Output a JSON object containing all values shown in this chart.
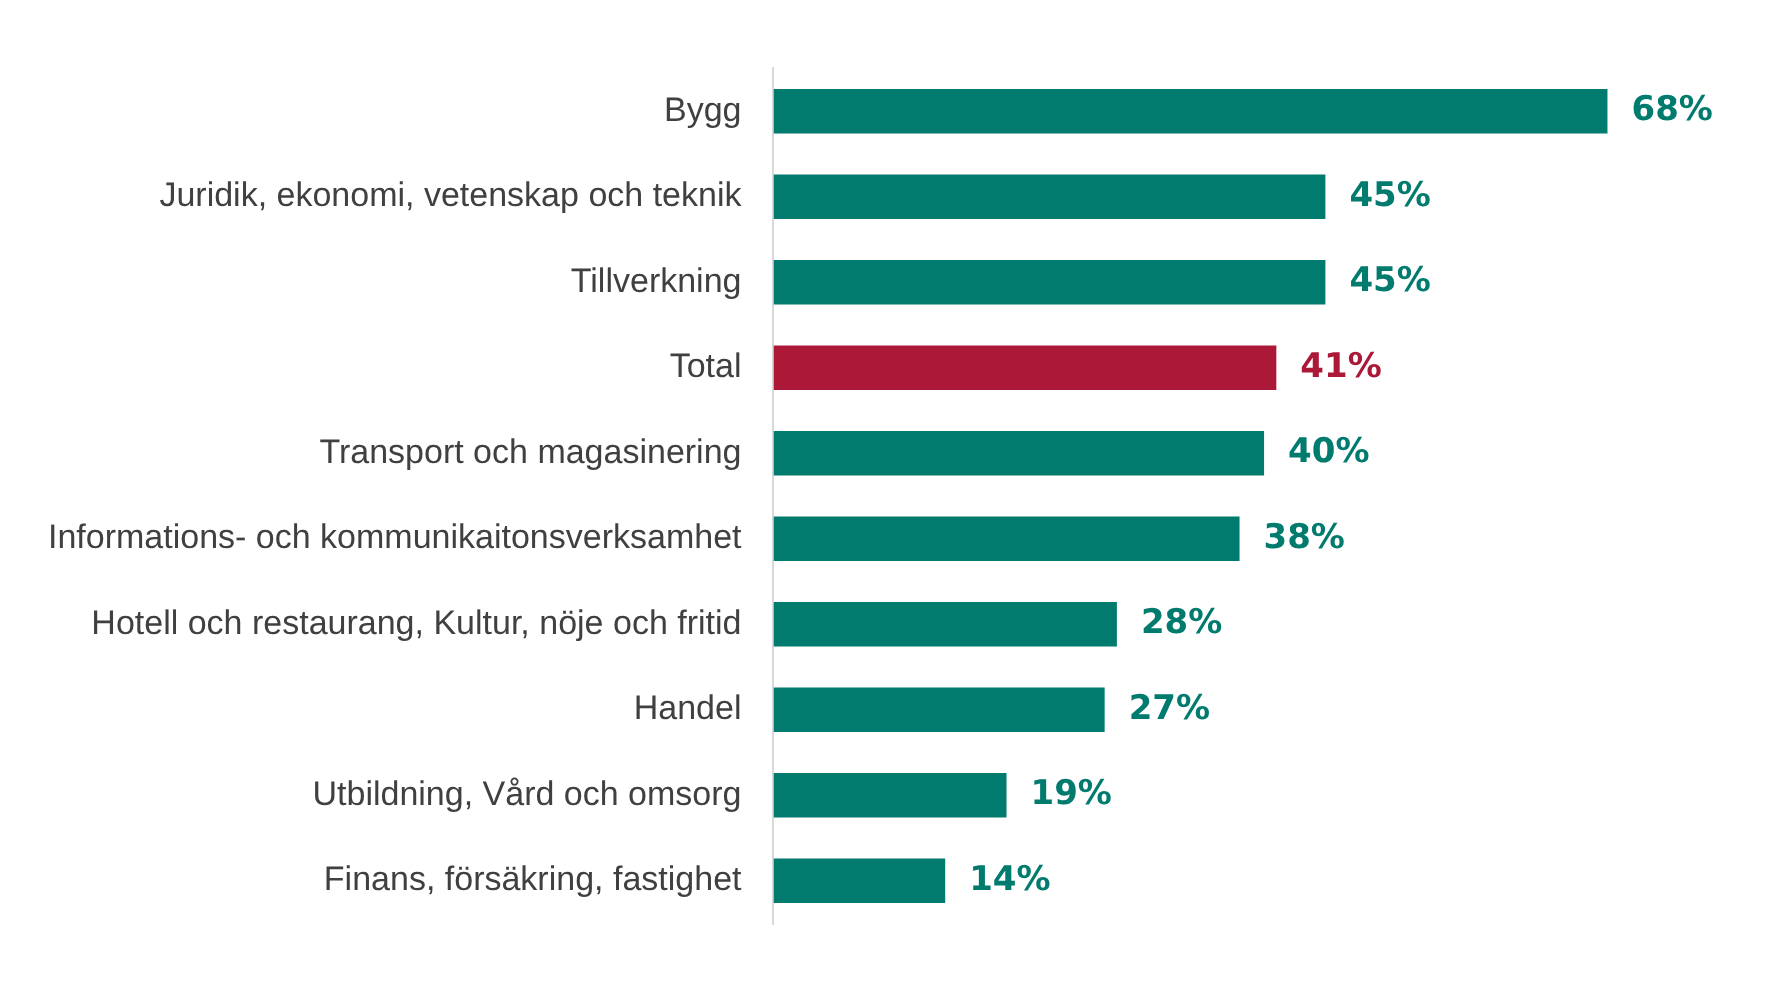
{
  "chart_data": {
    "type": "bar",
    "orientation": "horizontal",
    "categories": [
      "Bygg",
      "Juridik, ekonomi, vetenskap och teknik",
      "Tillverkning",
      "Total",
      "Transport och magasinering",
      "Informations- och kommunikaitonsverksamhet",
      "Hotell och restaurang, Kultur, nöje och fritid",
      "Handel",
      "Utbildning, Vård och omsorg",
      "Finans, försäkring, fastighet"
    ],
    "values": [
      68,
      45,
      45,
      41,
      40,
      38,
      28,
      27,
      19,
      14
    ],
    "colors": [
      "#007b6e",
      "#007b6e",
      "#007b6e",
      "#ab1838",
      "#007b6e",
      "#007b6e",
      "#007b6e",
      "#007b6e",
      "#007b6e",
      "#007b6e"
    ],
    "value_labels": [
      "68%",
      "45%",
      "45%",
      "41%",
      "40%",
      "38%",
      "28%",
      "27%",
      "19%",
      "14%"
    ],
    "grid": false,
    "legend": false
  }
}
